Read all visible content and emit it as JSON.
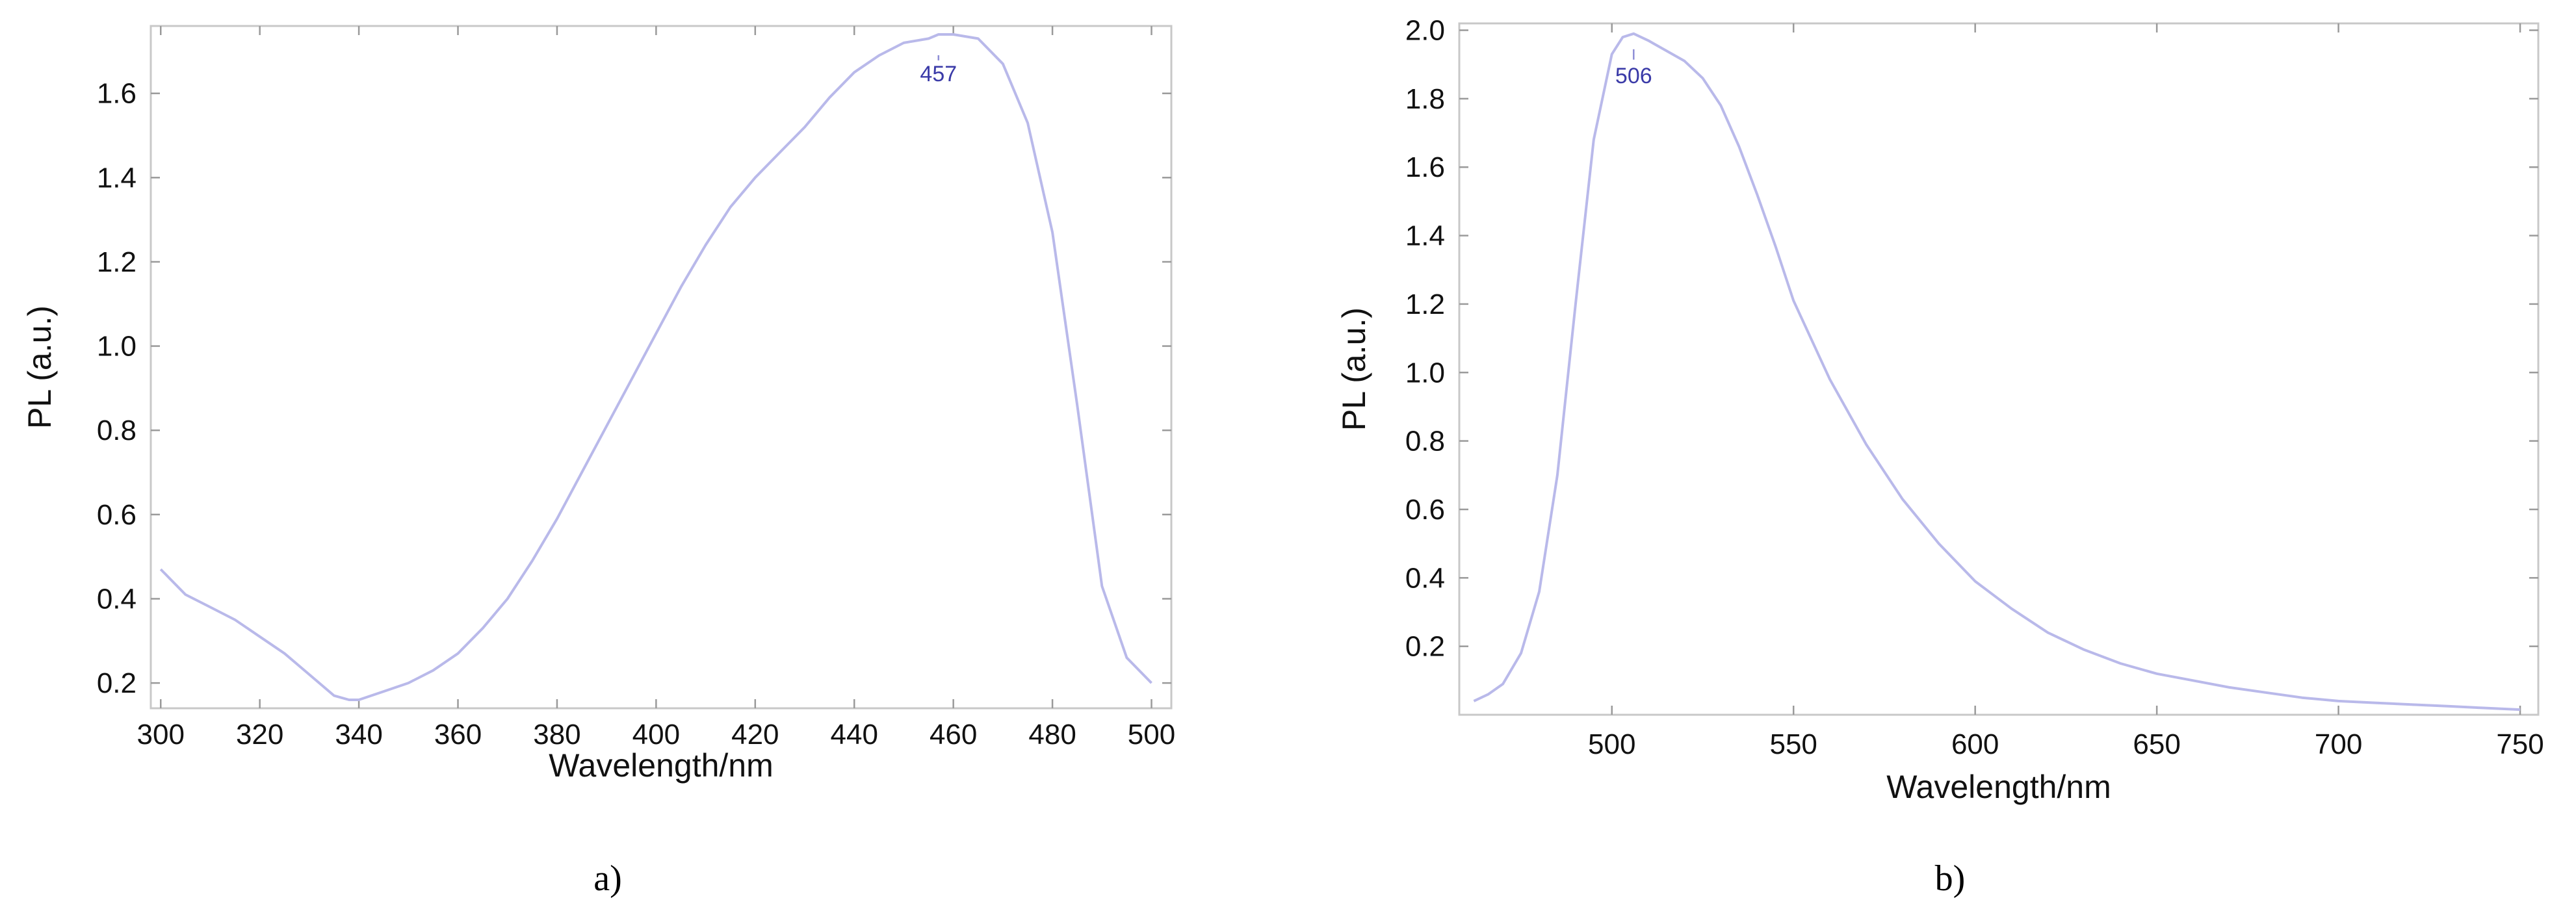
{
  "chart_data": [
    {
      "type": "line",
      "panel_label": "a)",
      "xlabel": "Wavelength/nm",
      "ylabel": "PL (a.u.)",
      "xlim": [
        298,
        504
      ],
      "ylim": [
        0.14,
        1.76
      ],
      "xticks": [
        300,
        320,
        340,
        360,
        380,
        400,
        420,
        440,
        460,
        480,
        500
      ],
      "yticks": [
        0.2,
        0.4,
        0.6,
        0.8,
        1.0,
        1.2,
        1.4,
        1.6
      ],
      "ytick_labels": [
        "0.2",
        "0.4",
        "0.6",
        "0.8",
        "1.0",
        "1.2",
        "1.4",
        "1.6"
      ],
      "grid": false,
      "colors": {
        "line": "#b9b9ea",
        "peak_label": "#3b3ba8"
      },
      "peak": {
        "x": 457,
        "label": "457"
      },
      "series": [
        {
          "x": [
            300,
            305,
            310,
            315,
            320,
            325,
            330,
            335,
            338,
            340,
            345,
            350,
            355,
            360,
            365,
            370,
            375,
            380,
            385,
            390,
            395,
            400,
            405,
            410,
            415,
            420,
            425,
            430,
            435,
            440,
            445,
            450,
            455,
            457,
            460,
            465,
            470,
            475,
            480,
            485,
            490,
            495,
            500
          ],
          "y": [
            0.47,
            0.41,
            0.38,
            0.35,
            0.31,
            0.27,
            0.22,
            0.17,
            0.16,
            0.16,
            0.18,
            0.2,
            0.23,
            0.27,
            0.33,
            0.4,
            0.49,
            0.59,
            0.7,
            0.81,
            0.92,
            1.03,
            1.14,
            1.24,
            1.33,
            1.4,
            1.46,
            1.52,
            1.59,
            1.65,
            1.69,
            1.72,
            1.73,
            1.74,
            1.74,
            1.73,
            1.67,
            1.53,
            1.27,
            0.86,
            0.43,
            0.26,
            0.2
          ]
        }
      ]
    },
    {
      "type": "line",
      "panel_label": "b)",
      "xlabel": "Wavelength/nm",
      "ylabel": "PL (a.u.)",
      "xlim": [
        458,
        755
      ],
      "ylim": [
        0.0,
        2.02
      ],
      "xticks": [
        500,
        550,
        600,
        650,
        700,
        750
      ],
      "yticks": [
        0.2,
        0.4,
        0.6,
        0.8,
        1.0,
        1.2,
        1.4,
        1.6,
        1.8,
        2.0
      ],
      "ytick_labels": [
        "0.2",
        "0.4",
        "0.6",
        "0.8",
        "1.0",
        "1.2",
        "1.4",
        "1.6",
        "1.8",
        "2.0"
      ],
      "grid": false,
      "colors": {
        "line": "#b9b9ea",
        "peak_label": "#3b3ba8"
      },
      "peak": {
        "x": 506,
        "label": "506"
      },
      "series": [
        {
          "x": [
            462,
            466,
            470,
            475,
            480,
            485,
            490,
            495,
            500,
            503,
            506,
            510,
            515,
            520,
            525,
            530,
            535,
            540,
            545,
            550,
            560,
            570,
            580,
            590,
            600,
            610,
            620,
            630,
            640,
            650,
            660,
            670,
            680,
            690,
            700,
            710,
            720,
            730,
            740,
            750
          ],
          "y": [
            0.04,
            0.06,
            0.09,
            0.18,
            0.36,
            0.7,
            1.2,
            1.68,
            1.93,
            1.98,
            1.99,
            1.97,
            1.94,
            1.91,
            1.86,
            1.78,
            1.66,
            1.52,
            1.37,
            1.21,
            0.98,
            0.79,
            0.63,
            0.5,
            0.39,
            0.31,
            0.24,
            0.19,
            0.15,
            0.12,
            0.1,
            0.08,
            0.065,
            0.05,
            0.04,
            0.035,
            0.03,
            0.025,
            0.02,
            0.015
          ]
        }
      ]
    }
  ]
}
